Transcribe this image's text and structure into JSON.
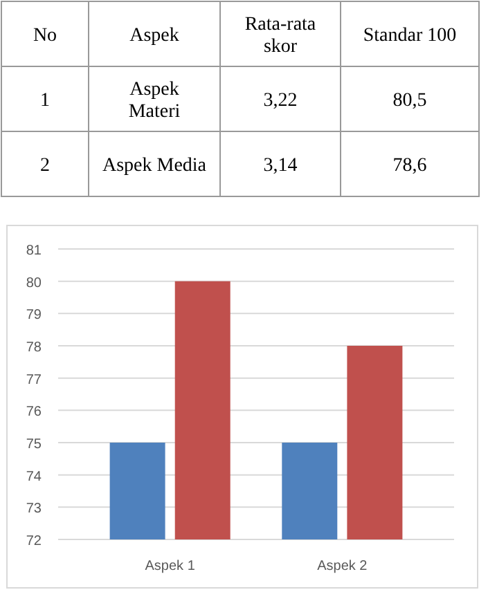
{
  "chart_data": [
    {
      "type": "other",
      "categories": [
        "No",
        "Aspek",
        "Rata-rata skor",
        "Standar 100"
      ],
      "annotations": [
        "1",
        "Aspek Materi",
        "3,22",
        "80,5",
        "2",
        "Aspek Media",
        "3,14",
        "78,6"
      ]
    },
    {
      "type": "bar",
      "categories": [
        "Aspek 1",
        "Aspek 2"
      ],
      "series": [
        {
          "color": "#4f81bd",
          "values": [
            75,
            75
          ]
        },
        {
          "color": "#c0504d",
          "values": [
            80,
            78
          ]
        }
      ],
      "ylim": [
        72,
        81
      ],
      "yticks": [
        72,
        73,
        74,
        75,
        76,
        77,
        78,
        79,
        80,
        81
      ],
      "grid": "y"
    }
  ]
}
